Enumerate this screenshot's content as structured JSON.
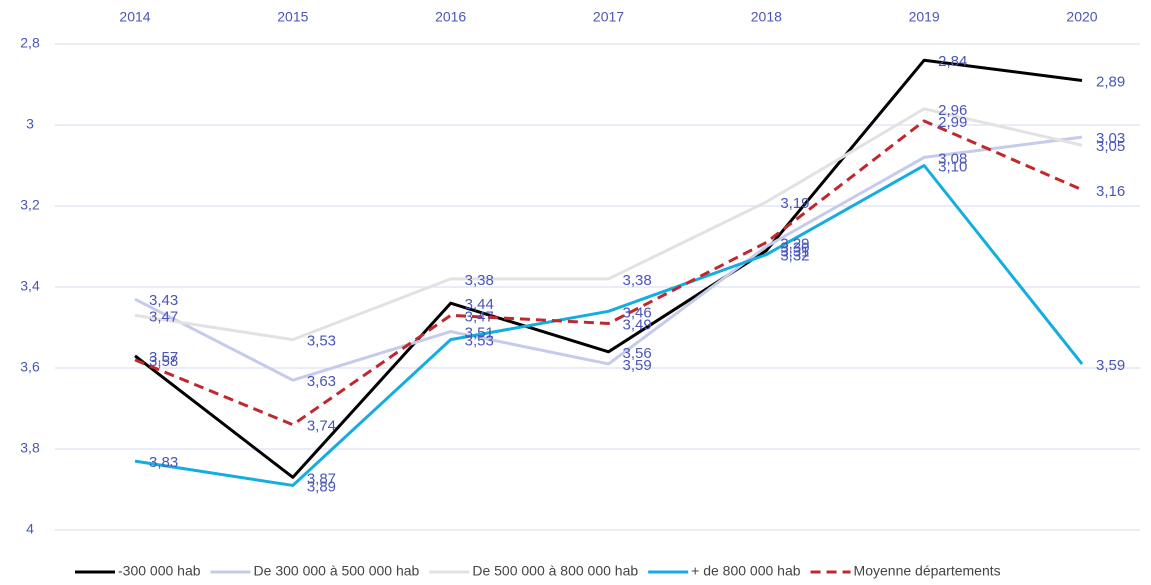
{
  "chart_data": {
    "type": "line",
    "categories": [
      "2014",
      "2015",
      "2016",
      "2017",
      "2018",
      "2019",
      "2020"
    ],
    "ylim": [
      2.8,
      4
    ],
    "inverted_y": true,
    "yticks": [
      {
        "value": 2.8,
        "label": "2,8"
      },
      3,
      {
        "value": 3.2,
        "label": "3,2"
      },
      {
        "value": 3.4,
        "label": "3,4"
      },
      {
        "value": 3.6,
        "label": "3,6"
      },
      {
        "value": 3.8,
        "label": "3,8"
      },
      4
    ],
    "grid": true,
    "legend": "bottom",
    "series": [
      {
        "name": "-300 000 hab",
        "color": "#000000",
        "dash": false,
        "values": [
          3.57,
          3.87,
          3.44,
          3.56,
          3.31,
          2.84,
          2.89
        ],
        "value_labels": [
          "3,57",
          "3,87",
          "3,44",
          "3,56",
          "3,31",
          "2,84",
          "2,89"
        ]
      },
      {
        "name": "De 300 000 à 500 000 hab",
        "color": "#c5cbea",
        "dash": false,
        "values": [
          3.43,
          3.63,
          3.51,
          3.59,
          3.3,
          3.08,
          3.03
        ],
        "value_labels": [
          "3,43",
          "3,63",
          "3,51",
          "3,59",
          "3,30",
          "3,08",
          "3,03"
        ]
      },
      {
        "name": "De 500 000 à 800 000 hab",
        "color": "#e2e2e2",
        "dash": false,
        "values": [
          3.47,
          3.53,
          3.38,
          3.38,
          3.19,
          2.96,
          3.05
        ],
        "value_labels": [
          "3,47",
          "3,53",
          "3,38",
          "3,38",
          "3,19",
          "2,96",
          "3,05"
        ]
      },
      {
        "name": "+ de 800 000 hab",
        "color": "#14ade0",
        "dash": false,
        "values": [
          3.83,
          3.89,
          3.53,
          3.46,
          3.32,
          3.1,
          3.59
        ],
        "value_labels": [
          "3,83",
          "3,89",
          "3,53",
          "3,46",
          "3,32",
          "3,10",
          "3,59"
        ]
      },
      {
        "name": "Moyenne départements",
        "color": "#c0282d",
        "dash": true,
        "values": [
          3.58,
          3.74,
          3.47,
          3.49,
          3.29,
          2.99,
          3.16
        ],
        "value_labels": [
          "3,58",
          "3,74",
          "3,47",
          "3,49",
          "3,29",
          "2,99",
          "3,16"
        ]
      }
    ]
  }
}
